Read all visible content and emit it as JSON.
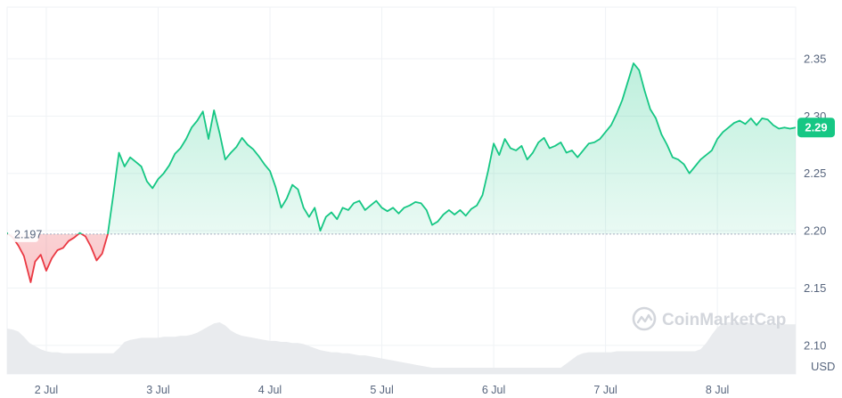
{
  "chart_data": {
    "type": "area",
    "baseline": {
      "value": 2.197,
      "label": "2.197"
    },
    "current": {
      "value": 2.29,
      "label": "2.29"
    },
    "currency_label": "USD",
    "watermark": "CoinMarketCap",
    "y_axis": {
      "ticks": [
        2.1,
        2.15,
        2.2,
        2.25,
        2.3,
        2.35
      ],
      "tick_labels": [
        "2.10",
        "2.15",
        "2.20",
        "2.25",
        "2.30",
        "2.35"
      ],
      "ylim": [
        2.075,
        2.395
      ]
    },
    "x_axis": {
      "tick_labels": [
        "2 Jul",
        "3 Jul",
        "4 Jul",
        "5 Jul",
        "6 Jul",
        "7 Jul",
        "8 Jul"
      ],
      "xlim": [
        1.65,
        8.7
      ]
    },
    "grid": true,
    "colors": {
      "up": "#16c784",
      "down": "#ea3943",
      "current_badge": "#16c784",
      "grid": "#eff2f5",
      "volume": "#e9ebee",
      "baseline": "#a6b0c3"
    },
    "series": [
      {
        "x": [
          1.65,
          1.7,
          1.75,
          1.8,
          1.86,
          1.9,
          1.95,
          2.0,
          2.05,
          2.1,
          2.15,
          2.2,
          2.25,
          2.3,
          2.35,
          2.4,
          2.45,
          2.5,
          2.55,
          2.6,
          2.65,
          2.7,
          2.75,
          2.8,
          2.85,
          2.9,
          2.95,
          3.0,
          3.05,
          3.1,
          3.15,
          3.2,
          3.25,
          3.3,
          3.35,
          3.4,
          3.45,
          3.5,
          3.55,
          3.6,
          3.65,
          3.7,
          3.75,
          3.8,
          3.85,
          3.9,
          3.95,
          4.0,
          4.05,
          4.1,
          4.15,
          4.2,
          4.25,
          4.3,
          4.35,
          4.4,
          4.45,
          4.5,
          4.55,
          4.6,
          4.65,
          4.7,
          4.75,
          4.8,
          4.85,
          4.9,
          4.95,
          5.0,
          5.05,
          5.1,
          5.15,
          5.2,
          5.25,
          5.3,
          5.35,
          5.4,
          5.45,
          5.5,
          5.55,
          5.6,
          5.65,
          5.7,
          5.75,
          5.8,
          5.85,
          5.9,
          5.95,
          6.0,
          6.05,
          6.1,
          6.15,
          6.2,
          6.25,
          6.3,
          6.35,
          6.4,
          6.45,
          6.5,
          6.55,
          6.6,
          6.65,
          6.7,
          6.75,
          6.8,
          6.85,
          6.9,
          6.95,
          7.0,
          7.05,
          7.1,
          7.15,
          7.2,
          7.25,
          7.3,
          7.35,
          7.4,
          7.45,
          7.5,
          7.55,
          7.6,
          7.65,
          7.7,
          7.75,
          7.8,
          7.85,
          7.9,
          7.95,
          8.0,
          8.05,
          8.1,
          8.15,
          8.2,
          8.25,
          8.3,
          8.35,
          8.4,
          8.45,
          8.5,
          8.55,
          8.6,
          8.65,
          8.7
        ],
        "y": [
          2.198,
          2.194,
          2.187,
          2.178,
          2.155,
          2.173,
          2.179,
          2.165,
          2.176,
          2.183,
          2.185,
          2.191,
          2.194,
          2.198,
          2.195,
          2.186,
          2.174,
          2.18,
          2.197,
          2.232,
          2.268,
          2.256,
          2.264,
          2.26,
          2.256,
          2.243,
          2.237,
          2.245,
          2.25,
          2.257,
          2.267,
          2.272,
          2.28,
          2.29,
          2.296,
          2.304,
          2.28,
          2.305,
          2.285,
          2.262,
          2.268,
          2.273,
          2.281,
          2.275,
          2.271,
          2.265,
          2.258,
          2.252,
          2.238,
          2.22,
          2.228,
          2.24,
          2.236,
          2.22,
          2.212,
          2.22,
          2.2,
          2.212,
          2.216,
          2.21,
          2.22,
          2.218,
          2.224,
          2.226,
          2.218,
          2.222,
          2.226,
          2.22,
          2.217,
          2.22,
          2.215,
          2.22,
          2.222,
          2.225,
          2.224,
          2.218,
          2.205,
          2.208,
          2.214,
          2.218,
          2.214,
          2.218,
          2.213,
          2.219,
          2.222,
          2.231,
          2.252,
          2.276,
          2.266,
          2.28,
          2.272,
          2.27,
          2.274,
          2.262,
          2.268,
          2.277,
          2.281,
          2.272,
          2.274,
          2.277,
          2.268,
          2.27,
          2.264,
          2.27,
          2.276,
          2.277,
          2.28,
          2.286,
          2.292,
          2.302,
          2.314,
          2.33,
          2.346,
          2.34,
          2.322,
          2.306,
          2.298,
          2.284,
          2.275,
          2.264,
          2.262,
          2.258,
          2.25,
          2.256,
          2.262,
          2.266,
          2.27,
          2.28,
          2.286,
          2.29,
          2.294,
          2.296,
          2.293,
          2.298,
          2.292,
          2.298,
          2.297,
          2.292,
          2.289,
          2.29,
          2.289,
          2.29
        ]
      }
    ],
    "volume": [
      0.44,
      0.43,
      0.41,
      0.36,
      0.3,
      0.27,
      0.24,
      0.22,
      0.21,
      0.21,
      0.2,
      0.2,
      0.2,
      0.2,
      0.2,
      0.2,
      0.2,
      0.2,
      0.2,
      0.2,
      0.25,
      0.31,
      0.33,
      0.34,
      0.35,
      0.35,
      0.35,
      0.35,
      0.36,
      0.36,
      0.36,
      0.37,
      0.37,
      0.38,
      0.4,
      0.43,
      0.46,
      0.49,
      0.5,
      0.47,
      0.42,
      0.39,
      0.37,
      0.36,
      0.35,
      0.34,
      0.33,
      0.32,
      0.32,
      0.31,
      0.31,
      0.3,
      0.3,
      0.29,
      0.27,
      0.25,
      0.23,
      0.22,
      0.21,
      0.21,
      0.2,
      0.2,
      0.19,
      0.18,
      0.18,
      0.17,
      0.16,
      0.15,
      0.14,
      0.13,
      0.12,
      0.11,
      0.1,
      0.09,
      0.08,
      0.07,
      0.06,
      0.06,
      0.06,
      0.06,
      0.06,
      0.06,
      0.06,
      0.06,
      0.06,
      0.06,
      0.06,
      0.06,
      0.06,
      0.06,
      0.06,
      0.06,
      0.06,
      0.06,
      0.06,
      0.06,
      0.06,
      0.06,
      0.06,
      0.06,
      0.1,
      0.14,
      0.18,
      0.2,
      0.21,
      0.21,
      0.21,
      0.21,
      0.21,
      0.22,
      0.22,
      0.22,
      0.22,
      0.22,
      0.22,
      0.22,
      0.22,
      0.22,
      0.22,
      0.22,
      0.22,
      0.22,
      0.22,
      0.22,
      0.24,
      0.3,
      0.38,
      0.45,
      0.49,
      0.5,
      0.5,
      0.5,
      0.5,
      0.49,
      0.48,
      0.48,
      0.48,
      0.48,
      0.48,
      0.48,
      0.48,
      0.48
    ]
  }
}
